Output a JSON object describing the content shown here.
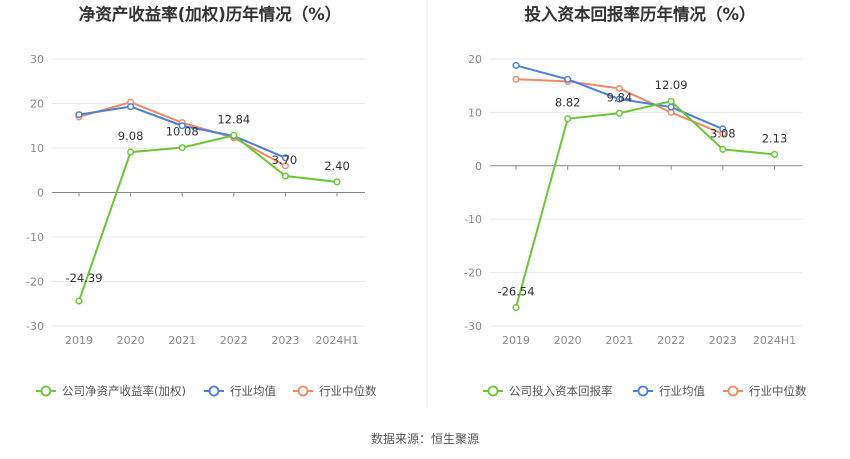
{
  "source": "数据来源：恒生聚源",
  "colors": {
    "company": "#6ac736",
    "avg": "#4a7fdc",
    "median": "#f08a66",
    "grid": "#e8e8e8",
    "axis": "#888888"
  },
  "chart_data": [
    {
      "type": "line",
      "title": "净资产收益率(加权)历年情况（%）",
      "categories": [
        "2019",
        "2020",
        "2021",
        "2022",
        "2023",
        "2024H1"
      ],
      "ylim": [
        -30,
        30
      ],
      "yticks": [
        "30",
        "20",
        "10",
        "0",
        "-10",
        "-20",
        "-30"
      ],
      "grid": true,
      "legend_position": "bottom-left",
      "series": [
        {
          "name": "公司净资产收益率(加权)",
          "key": "company",
          "values": [
            -24.39,
            9.08,
            10.08,
            12.84,
            3.7,
            2.4
          ],
          "labels": [
            "-24.39",
            "9.08",
            "10.08",
            "12.84",
            "3.70",
            "2.40"
          ]
        },
        {
          "name": "行业均值",
          "key": "avg",
          "values": [
            17.5,
            19.3,
            15.0,
            12.7,
            7.8,
            null
          ]
        },
        {
          "name": "行业中位数",
          "key": "median",
          "values": [
            17.0,
            20.3,
            15.7,
            12.3,
            6.0,
            null
          ]
        }
      ]
    },
    {
      "type": "line",
      "title": "投入资本回报率历年情况（%）",
      "categories": [
        "2019",
        "2020",
        "2021",
        "2022",
        "2023",
        "2024H1"
      ],
      "ylim": [
        -30,
        20
      ],
      "yticks": [
        "20",
        "10",
        "0",
        "-10",
        "-20",
        "-30"
      ],
      "grid": true,
      "legend_position": "bottom-left",
      "series": [
        {
          "name": "公司投入资本回报率",
          "key": "company",
          "values": [
            -26.54,
            8.82,
            9.84,
            12.09,
            3.08,
            2.13
          ],
          "labels": [
            "-26.54",
            "8.82",
            "9.84",
            "12.09",
            "3.08",
            "2.13"
          ]
        },
        {
          "name": "行业均值",
          "key": "avg",
          "values": [
            18.8,
            16.2,
            12.5,
            11.0,
            6.9,
            null
          ]
        },
        {
          "name": "行业中位数",
          "key": "median",
          "values": [
            16.2,
            15.8,
            14.5,
            10.0,
            6.0,
            null
          ]
        }
      ]
    }
  ]
}
